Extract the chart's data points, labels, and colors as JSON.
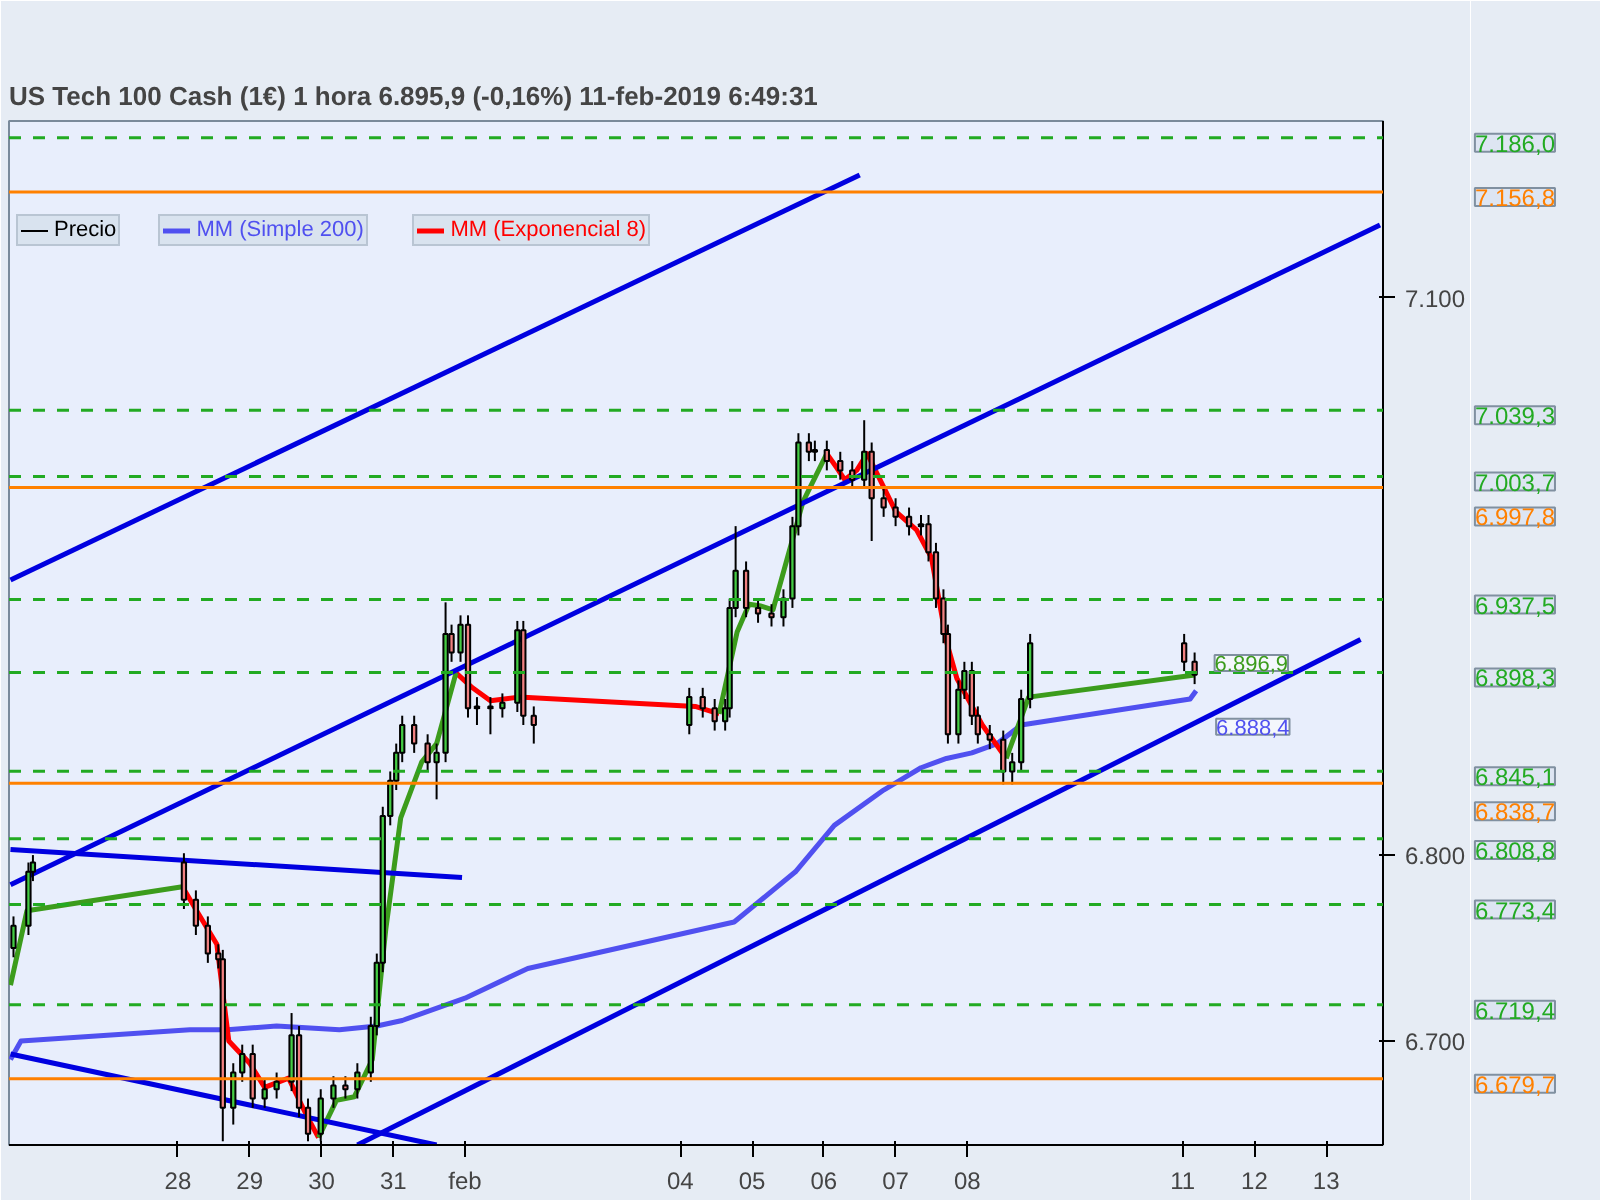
{
  "chart_data": {
    "type": "candlestick",
    "title": "US Tech 100 Cash (1€)   1 hora   6.895,9 (-0,16%)   11-feb-2019 6:49:31",
    "series": [
      {
        "name": "Precio",
        "color": "#000000",
        "x": [
          "2019-01-25T17:00",
          "2019-01-25T22:00",
          "2019-01-25T23:30",
          "2019-01-28T02:00",
          "2019-01-28T06:00",
          "2019-01-28T10:00",
          "2019-01-28T13:30",
          "2019-01-28T15:00",
          "2019-01-28T18:30",
          "2019-01-28T21:30",
          "2019-01-29T01:00",
          "2019-01-29T05:00",
          "2019-01-29T09:00",
          "2019-01-29T14:00",
          "2019-01-29T16:30",
          "2019-01-29T19:30",
          "2019-01-29T23:45",
          "2019-01-30T04:00",
          "2019-01-30T08:00",
          "2019-01-30T12:00",
          "2019-01-30T16:30",
          "2019-01-30T18:30",
          "2019-01-30T20:30",
          "2019-01-30T23:00",
          "2019-01-31T01:00",
          "2019-01-31T03:00",
          "2019-01-31T07:00",
          "2019-01-31T11:30",
          "2019-01-31T14:30",
          "2019-01-31T17:30",
          "2019-01-31T19:30",
          "2019-01-31T22:30",
          "2019-02-01T01:00",
          "2019-02-01T04:00",
          "2019-02-01T08:30",
          "2019-02-01T12:30",
          "2019-02-01T17:30",
          "2019-02-01T19:30",
          "2019-02-01T23:00",
          "2019-02-04T03:00",
          "2019-02-04T07:30",
          "2019-02-04T11:30",
          "2019-02-04T15:00",
          "2019-02-04T16:30",
          "2019-02-04T18:30",
          "2019-02-04T22:00",
          "2019-02-05T02:00",
          "2019-02-05T06:30",
          "2019-02-05T10:30",
          "2019-02-05T13:30",
          "2019-02-05T15:30",
          "2019-02-05T19:00",
          "2019-02-05T21:00",
          "2019-02-06T01:00",
          "2019-02-06T05:30",
          "2019-02-06T09:30",
          "2019-02-06T13:30",
          "2019-02-06T16:00",
          "2019-02-06T20:00",
          "2019-02-07T00:00",
          "2019-02-07T04:30",
          "2019-02-07T08:30",
          "2019-02-07T11:00",
          "2019-02-07T13:30",
          "2019-02-07T16:00",
          "2019-02-07T17:30",
          "2019-02-07T21:00",
          "2019-02-07T23:00",
          "2019-02-08T01:30",
          "2019-02-08T03:30",
          "2019-02-08T07:30",
          "2019-02-08T12:00",
          "2019-02-08T15:00",
          "2019-02-08T18:00",
          "2019-02-08T21:00",
          "2019-02-11T00:30",
          "2019-02-11T04:00"
        ],
        "ohlc": [
          [
            6750,
            6767,
            6745,
            6762
          ],
          [
            6762,
            6796,
            6757,
            6791
          ],
          [
            6791,
            6800,
            6786,
            6796
          ],
          [
            6796,
            6801,
            6771,
            6776
          ],
          [
            6776,
            6781,
            6757,
            6762
          ],
          [
            6762,
            6767,
            6742,
            6747
          ],
          [
            6747,
            6752,
            6739,
            6744
          ],
          [
            6744,
            6749,
            6646,
            6664
          ],
          [
            6664,
            6688,
            6655,
            6683
          ],
          [
            6683,
            6698,
            6678,
            6693
          ],
          [
            6693,
            6698,
            6664,
            6669
          ],
          [
            6669,
            6679,
            6664,
            6674
          ],
          [
            6674,
            6683,
            6669,
            6678
          ],
          [
            6678,
            6715,
            6673,
            6703
          ],
          [
            6703,
            6708,
            6659,
            6664
          ],
          [
            6664,
            6669,
            6646,
            6650
          ],
          [
            6650,
            6674,
            6646,
            6669
          ],
          [
            6669,
            6681,
            6664,
            6676
          ],
          [
            6676,
            6681,
            6669,
            6674
          ],
          [
            6674,
            6688,
            6669,
            6683
          ],
          [
            6683,
            6713,
            6678,
            6708
          ],
          [
            6708,
            6747,
            6703,
            6742
          ],
          [
            6742,
            6826,
            6737,
            6821
          ],
          [
            6821,
            6845,
            6816,
            6840
          ],
          [
            6840,
            6860,
            6835,
            6855
          ],
          [
            6855,
            6875,
            6850,
            6870
          ],
          [
            6870,
            6875,
            6855,
            6860
          ],
          [
            6860,
            6865,
            6845,
            6850
          ],
          [
            6850,
            6860,
            6830,
            6855
          ],
          [
            6855,
            6936,
            6850,
            6919
          ],
          [
            6919,
            6924,
            6904,
            6909
          ],
          [
            6909,
            6929,
            6904,
            6924
          ],
          [
            6924,
            6929,
            6874,
            6879
          ],
          [
            6879,
            6885,
            6870,
            6880
          ],
          [
            6880,
            6885,
            6865,
            6879
          ],
          [
            6879,
            6887,
            6874,
            6882
          ],
          [
            6882,
            6926,
            6877,
            6921
          ],
          [
            6921,
            6926,
            6870,
            6875
          ],
          [
            6875,
            6880,
            6860,
            6870
          ],
          [
            6870,
            6890,
            6865,
            6885
          ],
          [
            6885,
            6890,
            6874,
            6879
          ],
          [
            6879,
            6884,
            6867,
            6872
          ],
          [
            6872,
            6884,
            6867,
            6879
          ],
          [
            6879,
            6938,
            6874,
            6933
          ],
          [
            6933,
            6977,
            6928,
            6953
          ],
          [
            6953,
            6958,
            6928,
            6933
          ],
          [
            6933,
            6938,
            6925,
            6930
          ],
          [
            6930,
            6935,
            6923,
            6928
          ],
          [
            6928,
            6943,
            6923,
            6938
          ],
          [
            6938,
            6982,
            6933,
            6977
          ],
          [
            6977,
            7027,
            6972,
            7022
          ],
          [
            7022,
            7027,
            7012,
            7017
          ],
          [
            7017,
            7023,
            7012,
            7018
          ],
          [
            7018,
            7023,
            7007,
            7012
          ],
          [
            7012,
            7017,
            7002,
            7007
          ],
          [
            7007,
            7012,
            6997,
            7002
          ],
          [
            7002,
            7034,
            6997,
            7017
          ],
          [
            7017,
            7022,
            6969,
            6992
          ],
          [
            6992,
            6997,
            6982,
            6987
          ],
          [
            6987,
            6992,
            6977,
            6982
          ],
          [
            6982,
            6987,
            6972,
            6977
          ],
          [
            6977,
            6983,
            6972,
            6978
          ],
          [
            6978,
            6983,
            6958,
            6963
          ],
          [
            6963,
            6968,
            6933,
            6938
          ],
          [
            6938,
            6943,
            6914,
            6919
          ],
          [
            6919,
            6924,
            6860,
            6865
          ],
          [
            6865,
            6894,
            6860,
            6889
          ],
          [
            6889,
            6904,
            6884,
            6899
          ],
          [
            6899,
            6904,
            6870,
            6875
          ],
          [
            6875,
            6880,
            6860,
            6865
          ],
          [
            6865,
            6870,
            6857,
            6862
          ],
          [
            6862,
            6867,
            6838,
            6845
          ],
          [
            6845,
            6855,
            6838,
            6850
          ],
          [
            6850,
            6889,
            6845,
            6884
          ],
          [
            6884,
            6919,
            6879,
            6914
          ],
          [
            6914,
            6919,
            6899,
            6904
          ],
          [
            6904,
            6909,
            6892,
            6897
          ]
        ]
      },
      {
        "name": "MM (Simple 200)",
        "type": "line",
        "color": "#5050f0",
        "x": [
          "2019-01-25T16:00",
          "2019-01-25T19:30",
          "2019-01-28T04:00",
          "2019-01-28T16:30",
          "2019-01-29T09:00",
          "2019-01-30T06:00",
          "2019-01-30T18:30",
          "2019-01-31T03:00",
          "2019-02-01T00:00",
          "2019-02-01T21:00",
          "2019-02-04T18:00",
          "2019-02-05T14:30",
          "2019-02-06T03:30",
          "2019-02-06T20:00",
          "2019-02-07T08:30",
          "2019-02-07T17:00",
          "2019-02-08T01:30",
          "2019-02-08T10:00",
          "2019-02-08T18:00",
          "2019-02-11T02:30",
          "2019-02-11T04:30"
        ],
        "values": [
          6690,
          6700,
          6706,
          6706,
          6708,
          6706,
          6708,
          6711,
          6723,
          6739,
          6764,
          6791,
          6816,
          6835,
          6847,
          6852,
          6855,
          6860,
          6870,
          6884,
          6888.4
        ],
        "value_labels": [
          null,
          null,
          null,
          null,
          null,
          null,
          null,
          null,
          null,
          null,
          null,
          null,
          null,
          null,
          null,
          null,
          null,
          null,
          null,
          null,
          "6.888,4"
        ]
      },
      {
        "name": "MM (Exponencial 8)",
        "type": "line",
        "color": "#ff0000",
        "x": [
          "2019-01-28T01:30",
          "2019-01-28T07:00",
          "2019-01-28T13:00",
          "2019-01-28T17:00",
          "2019-01-29T00:00",
          "2019-01-29T05:00",
          "2019-01-29T13:00",
          "2019-01-29T19:00",
          "2019-01-29T23:00",
          "2019-01-30T05:00",
          "2019-01-30T11:00",
          "2019-01-30T17:00",
          "2019-01-30T21:30",
          "2019-01-31T02:30",
          "2019-01-31T09:30",
          "2019-01-31T14:30",
          "2019-01-31T21:00",
          "2019-02-01T02:30",
          "2019-02-01T08:30",
          "2019-02-01T18:00",
          "2019-02-04T05:00",
          "2019-02-04T13:00",
          "2019-02-04T19:00",
          "2019-02-04T23:00",
          "2019-02-05T03:00",
          "2019-02-05T07:00",
          "2019-02-05T17:00",
          "2019-02-06T01:00",
          "2019-02-06T04:30",
          "2019-02-06T07:00",
          "2019-02-06T11:00",
          "2019-02-06T14:30",
          "2019-02-07T00:00",
          "2019-02-07T07:00",
          "2019-02-07T12:00",
          "2019-02-07T17:00",
          "2019-02-07T20:30",
          "2019-02-08T05:00",
          "2019-02-08T13:00"
        ],
        "values": [
          6783,
          6768,
          6752,
          6700,
          6688,
          6675,
          6680,
          6660,
          6648,
          null,
          null,
          null,
          null,
          null,
          null,
          null,
          6898,
          6890,
          6883,
          6885,
          6880,
          6876,
          null,
          null,
          null,
          null,
          null,
          7016,
          7008,
          7002,
          7007,
          7016,
          6985,
          6975,
          6960,
          6915,
          6895,
          6870,
          6852
        ]
      },
      {
        "type": "line",
        "color": "#3c9c1c",
        "x": [
          "2019-01-25T16:00",
          "2019-01-25T21:30",
          "2019-01-28T01:30",
          "2019-01-28T07:00",
          "2019-01-28T13:00",
          "2019-01-28T17:00",
          "2019-01-29T00:00",
          "2019-01-29T05:00",
          "2019-01-29T13:00",
          "2019-01-29T19:00",
          "2019-01-29T23:00",
          "2019-01-30T05:00",
          "2019-01-30T11:00",
          "2019-01-30T17:00",
          "2019-01-30T21:30",
          "2019-01-31T02:30",
          "2019-01-31T09:30",
          "2019-01-31T14:30",
          "2019-01-31T21:00",
          "2019-02-01T02:30",
          "2019-02-01T08:30",
          "2019-02-01T18:00",
          "2019-02-04T05:00",
          "2019-02-04T13:00",
          "2019-02-04T19:00",
          "2019-02-04T23:00",
          "2019-02-05T03:00",
          "2019-02-05T07:00",
          "2019-02-05T17:00",
          "2019-02-06T01:00",
          "2019-02-06T04:30",
          "2019-02-06T07:00",
          "2019-02-06T11:00",
          "2019-02-06T14:30",
          "2019-02-07T00:00",
          "2019-02-07T07:00",
          "2019-02-07T12:00",
          "2019-02-07T17:00",
          "2019-02-07T20:30",
          "2019-02-08T05:00",
          "2019-02-08T13:00",
          "2019-02-08T20:30",
          "2019-02-11T04:00"
        ],
        "values": [
          6730,
          6770,
          6783,
          null,
          null,
          null,
          null,
          null,
          null,
          null,
          6648,
          6668,
          6670,
          6690,
          6760,
          6820,
          6850,
          6860,
          6898,
          null,
          null,
          null,
          null,
          6876,
          6920,
          6935,
          6934,
          6932,
          6990,
          7016,
          null,
          null,
          null,
          null,
          null,
          null,
          null,
          null,
          null,
          null,
          6852,
          6885,
          6896.9
        ],
        "value_labels": [
          null,
          null,
          null,
          null,
          null,
          null,
          null,
          null,
          null,
          null,
          null,
          null,
          null,
          null,
          null,
          null,
          null,
          null,
          null,
          null,
          null,
          null,
          null,
          null,
          null,
          null,
          null,
          null,
          null,
          null,
          null,
          null,
          null,
          null,
          null,
          null,
          null,
          null,
          null,
          null,
          null,
          null,
          "6.896,9"
        ]
      },
      {
        "type": "line",
        "color": "#0000e0",
        "x": [
          "2019-01-25T16:00",
          "2019-02-06T12:00"
        ],
        "values": [
          6948,
          7166
        ]
      },
      {
        "type": "line",
        "color": "#0000e0",
        "x": [
          "2019-01-25T16:00",
          "2019-02-13T18:00"
        ],
        "values": [
          6784,
          7139
        ]
      },
      {
        "type": "line",
        "color": "#0000e0",
        "x": [
          "2019-01-30T12:00",
          "2019-02-13T11:30"
        ],
        "values": [
          6644,
          6916
        ]
      },
      {
        "type": "line",
        "color": "#0000e0",
        "x": [
          "2019-01-25T16:00",
          "2019-01-31T23:00"
        ],
        "values": [
          6803,
          6788
        ]
      },
      {
        "type": "line",
        "color": "#0000e0",
        "x": [
          "2019-01-25T16:00",
          "2019-01-31T14:30"
        ],
        "values": [
          6693,
          6644
        ]
      }
    ],
    "xlim": [
      "2019-01-25T15:30",
      "2019-02-13T19:00"
    ],
    "xticks": [
      {
        "value": "2019-01-28",
        "label": "28"
      },
      {
        "value": "2019-01-29",
        "label": "29"
      },
      {
        "value": "2019-01-30",
        "label": "30"
      },
      {
        "value": "2019-01-31",
        "label": "31"
      },
      {
        "value": "2019-02-01",
        "label": "feb"
      },
      {
        "value": "2019-02-04",
        "label": "04"
      },
      {
        "value": "2019-02-05",
        "label": "05"
      },
      {
        "value": "2019-02-06",
        "label": "06"
      },
      {
        "value": "2019-02-07",
        "label": "07"
      },
      {
        "value": "2019-02-08",
        "label": "08"
      },
      {
        "value": "2019-02-11",
        "label": "11"
      },
      {
        "value": "2019-02-12",
        "label": "12"
      },
      {
        "value": "2019-02-13",
        "label": "13"
      }
    ],
    "ylim": [
      6644,
      7195
    ],
    "yticks": [
      {
        "value": 6700,
        "label": "6.700"
      },
      {
        "value": 6800,
        "label": "6.800"
      },
      {
        "value": 7100,
        "label": "7.100"
      }
    ],
    "ref_lines": [
      {
        "axis": "y",
        "value": 7186.0,
        "label": "7.186,0",
        "color": "#22aa22",
        "line_style": "dashed"
      },
      {
        "axis": "y",
        "value": 7156.8,
        "label": "7.156,8",
        "color": "#ff8000",
        "line_style": "solid"
      },
      {
        "axis": "y",
        "value": 7039.3,
        "label": "7.039,3",
        "color": "#22aa22",
        "line_style": "dashed"
      },
      {
        "axis": "y",
        "value": 7003.7,
        "label": "7.003,7",
        "color": "#22aa22",
        "line_style": "dashed"
      },
      {
        "axis": "y",
        "value": 6997.8,
        "label": "6.997,8",
        "color": "#ff8000",
        "line_style": "solid"
      },
      {
        "axis": "y",
        "value": 6937.5,
        "label": "6.937,5",
        "color": "#22aa22",
        "line_style": "dashed"
      },
      {
        "axis": "y",
        "value": 6898.3,
        "label": "6.898,3",
        "color": "#22aa22",
        "line_style": "dashed"
      },
      {
        "axis": "y",
        "value": 6845.1,
        "label": "6.845,1",
        "color": "#22aa22",
        "line_style": "dashed"
      },
      {
        "axis": "y",
        "value": 6838.7,
        "label": "6.838,7",
        "color": "#ff8000",
        "line_style": "solid"
      },
      {
        "axis": "y",
        "value": 6808.8,
        "label": "6.808,8",
        "color": "#22aa22",
        "line_style": "dashed"
      },
      {
        "axis": "y",
        "value": 6773.4,
        "label": "6.773,4",
        "color": "#22aa22",
        "line_style": "dashed"
      },
      {
        "axis": "y",
        "value": 6719.4,
        "label": "6.719,4",
        "color": "#22aa22",
        "line_style": "dashed"
      },
      {
        "axis": "y",
        "value": 6679.7,
        "label": "6.679,7",
        "color": "#ff8000",
        "line_style": "solid"
      }
    ],
    "legend": "top left",
    "grid": false
  }
}
